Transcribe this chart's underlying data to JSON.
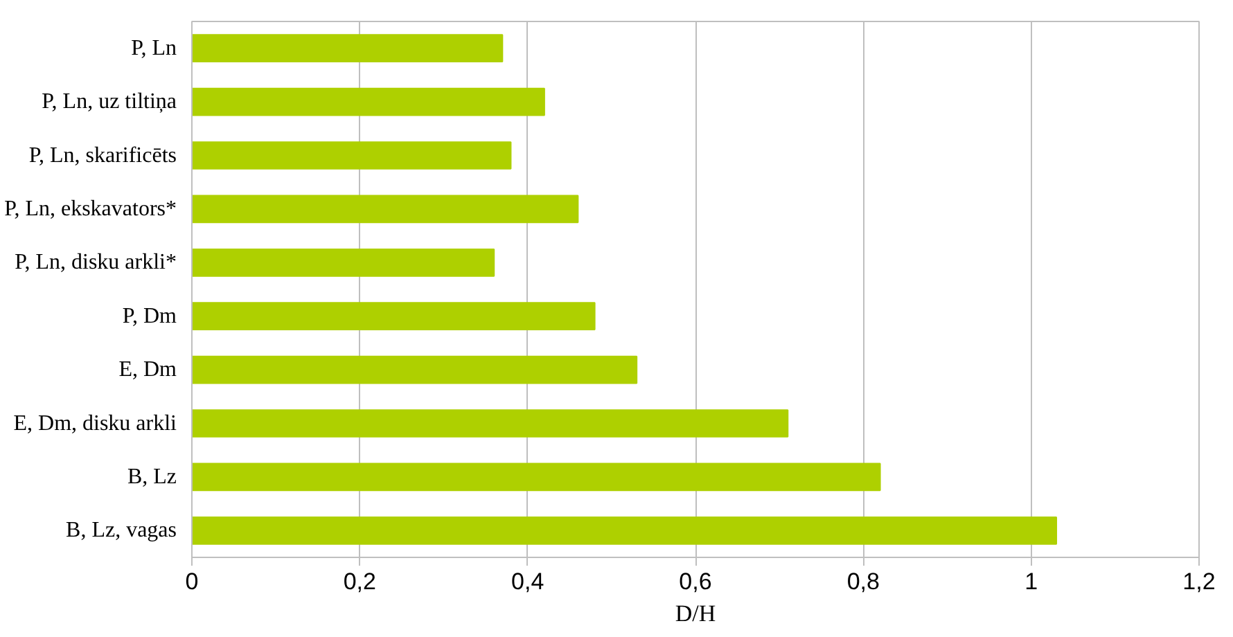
{
  "chart_data": {
    "type": "bar",
    "orientation": "horizontal",
    "xlabel": "D/H",
    "categories": [
      "P, Ln",
      "P, Ln, uz tiltiņa",
      "P, Ln, skarificēts",
      "P, Ln, ekskavators*",
      "P, Ln, disku arkli*",
      "P, Dm",
      "E, Dm",
      "E, Dm, disku arkli",
      "B, Lz",
      "B, Lz, vagas"
    ],
    "values": [
      0.37,
      0.42,
      0.38,
      0.46,
      0.36,
      0.48,
      0.53,
      0.71,
      0.82,
      1.03
    ],
    "color": "#aed000",
    "xlim": [
      0,
      1.2
    ],
    "xticks": [
      0,
      {
        "value": 0.2,
        "label": "0,2"
      },
      {
        "value": 0.4,
        "label": "0,4"
      },
      {
        "value": 0.6,
        "label": "0,6"
      },
      {
        "value": 0.8,
        "label": "0,8"
      },
      1,
      {
        "value": 1.2,
        "label": "1,2"
      }
    ],
    "grid": "x"
  }
}
